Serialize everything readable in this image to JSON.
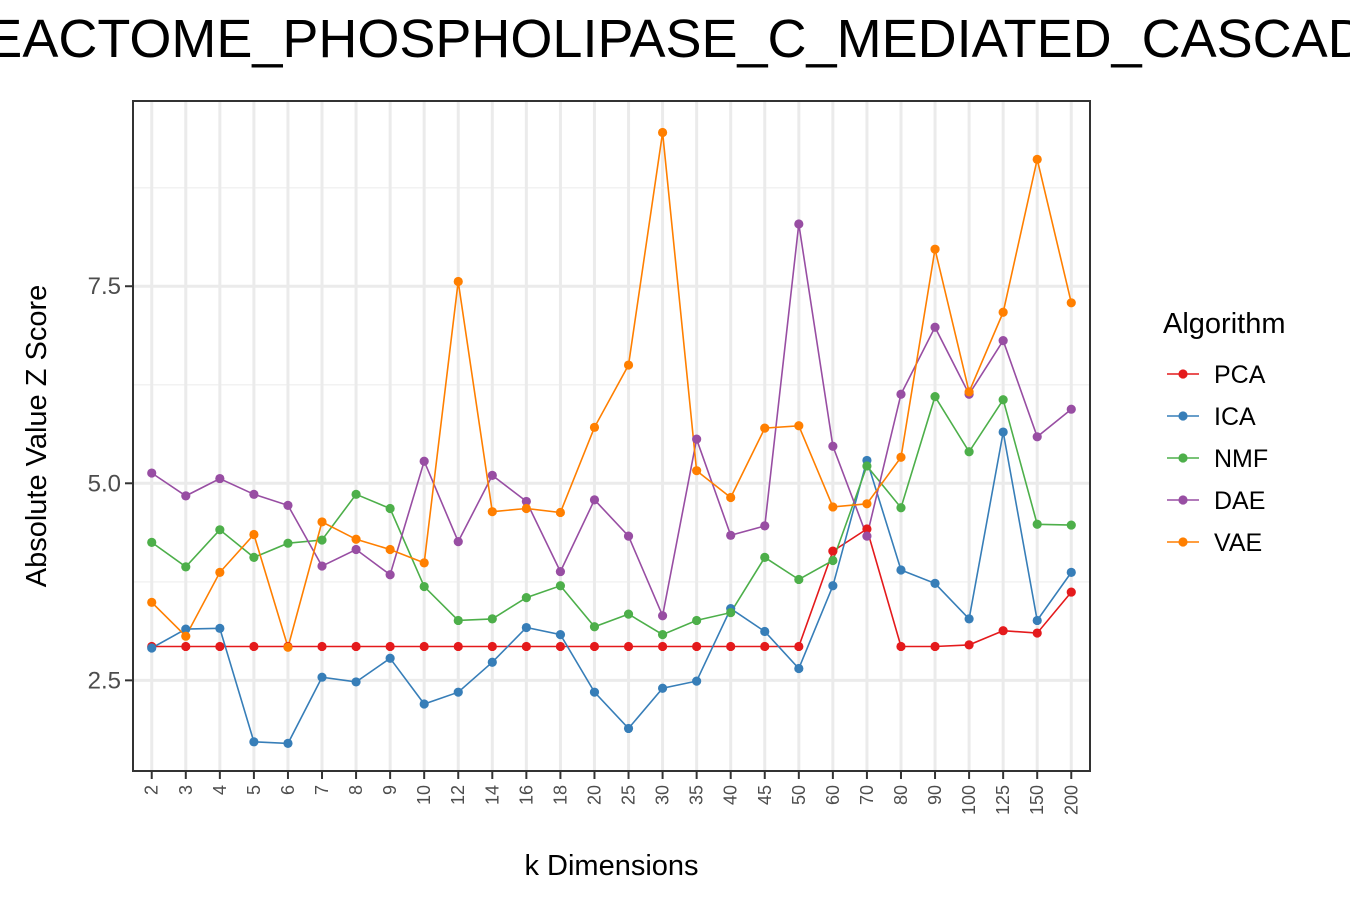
{
  "chart_data": {
    "type": "line",
    "title": "REACTOME_PHOSPHOLIPASE_C_MEDIATED_CASCADE",
    "xlabel": "k Dimensions",
    "ylabel": "Absolute Value Z Score",
    "categories": [
      "2",
      "3",
      "4",
      "5",
      "6",
      "7",
      "8",
      "9",
      "10",
      "12",
      "14",
      "16",
      "18",
      "20",
      "25",
      "30",
      "35",
      "40",
      "45",
      "50",
      "60",
      "70",
      "80",
      "90",
      "100",
      "125",
      "150",
      "200"
    ],
    "ylim": [
      1.35,
      9.85
    ],
    "yticks": [
      2.5,
      5.0,
      7.5
    ],
    "ytick_labels": [
      "2.5",
      "5.0",
      "7.5"
    ],
    "grid": true,
    "legend": {
      "title": "Algorithm",
      "placement": "right"
    },
    "series": [
      {
        "name": "PCA",
        "color": "#E41A1C",
        "values": [
          2.93,
          2.93,
          2.93,
          2.93,
          2.93,
          2.93,
          2.93,
          2.93,
          2.93,
          2.93,
          2.93,
          2.93,
          2.93,
          2.93,
          2.93,
          2.93,
          2.93,
          2.93,
          2.93,
          2.93,
          4.14,
          4.42,
          2.93,
          2.93,
          2.95,
          3.13,
          3.1,
          3.62
        ]
      },
      {
        "name": "ICA",
        "color": "#377EB8",
        "values": [
          2.91,
          3.15,
          3.16,
          1.72,
          1.7,
          2.54,
          2.48,
          2.78,
          2.2,
          2.35,
          2.73,
          3.17,
          3.08,
          2.35,
          1.89,
          2.4,
          2.49,
          3.41,
          3.12,
          2.65,
          3.7,
          5.29,
          3.9,
          3.73,
          3.28,
          5.65,
          3.26,
          3.87
        ]
      },
      {
        "name": "NMF",
        "color": "#4DAF4A",
        "values": [
          4.25,
          3.94,
          4.41,
          4.06,
          4.24,
          4.28,
          4.86,
          4.68,
          3.69,
          3.26,
          3.28,
          3.55,
          3.7,
          3.18,
          3.34,
          3.08,
          3.26,
          3.36,
          4.06,
          3.78,
          4.02,
          5.22,
          4.69,
          6.1,
          5.4,
          6.06,
          4.48,
          4.47
        ]
      },
      {
        "name": "DAE",
        "color": "#984EA3",
        "values": [
          5.13,
          4.84,
          5.06,
          4.86,
          4.72,
          3.95,
          4.16,
          3.84,
          5.28,
          4.26,
          5.1,
          4.77,
          3.88,
          4.79,
          4.33,
          3.32,
          5.56,
          4.34,
          4.46,
          8.29,
          5.47,
          4.33,
          6.13,
          6.98,
          6.13,
          6.81,
          5.59,
          5.94
        ]
      },
      {
        "name": "VAE",
        "color": "#FF7F00",
        "values": [
          3.49,
          3.06,
          3.87,
          4.35,
          2.92,
          4.51,
          4.29,
          4.16,
          3.99,
          7.56,
          4.64,
          4.68,
          4.63,
          5.71,
          6.5,
          9.45,
          5.16,
          4.82,
          5.7,
          5.73,
          4.7,
          4.74,
          5.33,
          7.97,
          6.16,
          7.17,
          9.11,
          7.29
        ]
      }
    ]
  }
}
